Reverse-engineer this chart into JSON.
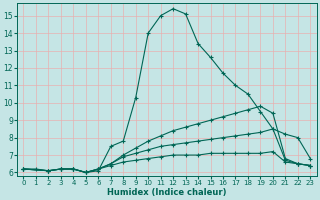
{
  "xlabel": "Humidex (Indice chaleur)",
  "bg_color": "#c5e5e5",
  "grid_color": "#e8b0b0",
  "line_color": "#006655",
  "xlim": [
    -0.5,
    23.5
  ],
  "ylim": [
    5.8,
    15.7
  ],
  "xticks": [
    0,
    1,
    2,
    3,
    4,
    5,
    6,
    7,
    8,
    9,
    10,
    11,
    12,
    13,
    14,
    15,
    16,
    17,
    18,
    19,
    20,
    21,
    22,
    23
  ],
  "yticks": [
    6,
    7,
    8,
    9,
    10,
    11,
    12,
    13,
    14,
    15
  ],
  "line1_x": [
    0,
    1,
    2,
    3,
    4,
    5,
    6,
    7,
    8,
    9,
    10,
    11,
    12,
    13,
    14,
    15,
    16,
    17,
    18,
    19,
    20,
    21,
    22,
    23
  ],
  "line1_y": [
    6.2,
    6.2,
    6.1,
    6.2,
    6.2,
    6.0,
    6.1,
    7.5,
    7.8,
    10.3,
    14.0,
    15.0,
    15.4,
    15.1,
    13.4,
    12.6,
    11.7,
    11.0,
    10.5,
    9.5,
    8.5,
    8.2,
    8.0,
    6.8
  ],
  "line2_x": [
    0,
    2,
    3,
    4,
    5,
    6,
    7,
    8,
    9,
    10,
    11,
    12,
    13,
    14,
    15,
    16,
    17,
    18,
    19,
    20,
    21,
    22,
    23
  ],
  "line2_y": [
    6.2,
    6.1,
    6.2,
    6.2,
    6.0,
    6.2,
    6.5,
    7.0,
    7.4,
    7.8,
    8.1,
    8.4,
    8.6,
    8.8,
    9.0,
    9.2,
    9.4,
    9.6,
    9.8,
    9.4,
    6.8,
    6.5,
    6.4
  ],
  "line3_x": [
    0,
    2,
    3,
    4,
    5,
    6,
    7,
    8,
    9,
    10,
    11,
    12,
    13,
    14,
    15,
    16,
    17,
    18,
    19,
    20,
    21,
    22,
    23
  ],
  "line3_y": [
    6.2,
    6.1,
    6.2,
    6.2,
    6.0,
    6.2,
    6.5,
    6.9,
    7.1,
    7.3,
    7.5,
    7.6,
    7.7,
    7.8,
    7.9,
    8.0,
    8.1,
    8.2,
    8.3,
    8.5,
    6.7,
    6.5,
    6.4
  ],
  "line4_x": [
    0,
    2,
    3,
    4,
    5,
    6,
    7,
    8,
    9,
    10,
    11,
    12,
    13,
    14,
    15,
    16,
    17,
    18,
    19,
    20,
    21,
    22,
    23
  ],
  "line4_y": [
    6.2,
    6.1,
    6.2,
    6.2,
    6.0,
    6.2,
    6.4,
    6.6,
    6.7,
    6.8,
    6.9,
    7.0,
    7.0,
    7.0,
    7.1,
    7.1,
    7.1,
    7.1,
    7.1,
    7.2,
    6.6,
    6.5,
    6.4
  ]
}
